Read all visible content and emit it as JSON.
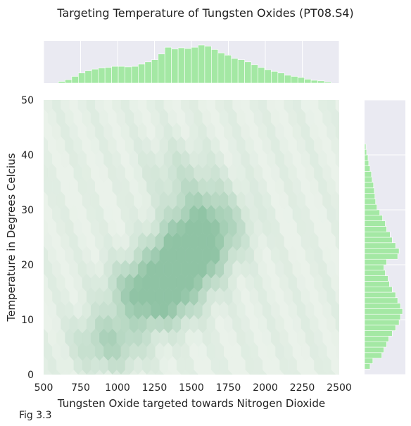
{
  "chart_data": {
    "type": "hexbin",
    "title": "Targeting Temperature of Tungsten Oxides (PT08.S4)",
    "caption": "Fig 3.3",
    "xlabel": "Tungsten Oxide targeted towards Nitrogen Dioxide",
    "ylabel": "Temperature in Degrees Celcius",
    "xlim": [
      500,
      2500
    ],
    "ylim": [
      0,
      50
    ],
    "xticks": [
      500,
      750,
      1000,
      1250,
      1500,
      1750,
      2000,
      2250,
      2500
    ],
    "yticks": [
      0,
      10,
      20,
      30,
      40,
      50
    ],
    "grid": true,
    "colors": {
      "background": "#eaeaf2",
      "grid": "#ffffff",
      "hist_fill": "#a4e8a4",
      "hex_low": "#eaf2ea",
      "hex_high": "#8fc3a4"
    },
    "density_clusters": [
      {
        "x": 950,
        "y": 6,
        "weight": 0.6
      },
      {
        "x": 1300,
        "y": 14,
        "weight": 0.85
      },
      {
        "x": 1450,
        "y": 20,
        "weight": 0.9
      },
      {
        "x": 1500,
        "y": 24,
        "weight": 0.65
      },
      {
        "x": 1650,
        "y": 27,
        "weight": 0.5
      },
      {
        "x": 1550,
        "y": 32,
        "weight": 0.35
      },
      {
        "x": 1400,
        "y": 38,
        "weight": 0.2
      },
      {
        "x": 1150,
        "y": 16,
        "weight": 0.5
      }
    ],
    "x_marginal": {
      "bin_start": 600,
      "bin_width": 45,
      "counts": [
        3,
        6,
        12,
        18,
        22,
        25,
        27,
        28,
        30,
        30,
        29,
        30,
        34,
        38,
        42,
        52,
        64,
        61,
        63,
        62,
        64,
        68,
        66,
        60,
        54,
        50,
        44,
        42,
        38,
        33,
        28,
        24,
        21,
        18,
        14,
        12,
        10,
        7,
        5,
        4,
        2
      ]
    },
    "y_marginal": {
      "bin_start": 1,
      "bin_width": 1,
      "counts": [
        8,
        12,
        25,
        28,
        32,
        35,
        40,
        45,
        50,
        52,
        55,
        52,
        48,
        45,
        40,
        36,
        34,
        30,
        28,
        32,
        48,
        50,
        45,
        40,
        37,
        32,
        30,
        26,
        22,
        18,
        16,
        15,
        14,
        13,
        11,
        10,
        8,
        6,
        5,
        3,
        2
      ]
    }
  }
}
